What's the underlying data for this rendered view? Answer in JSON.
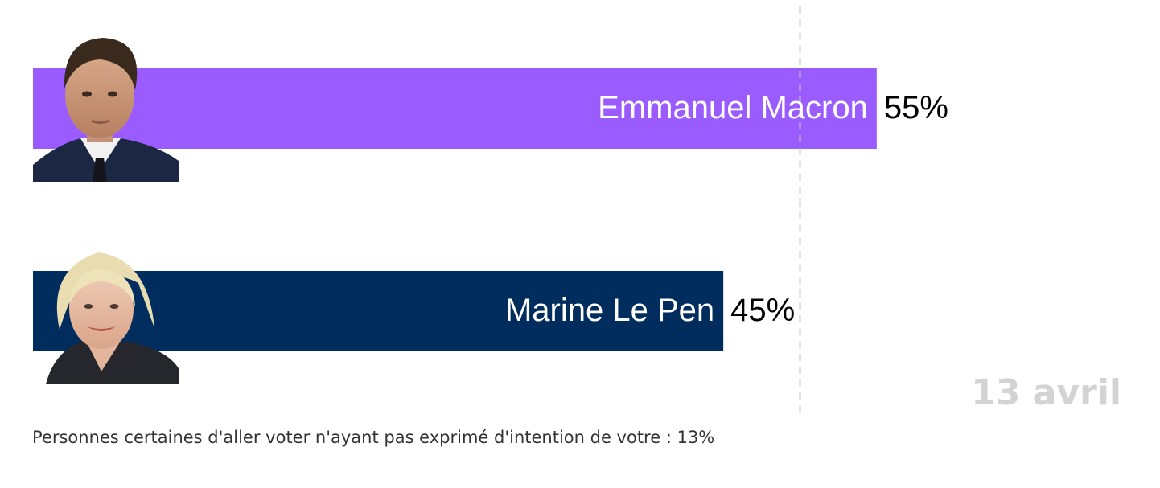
{
  "chart_data": {
    "type": "bar",
    "orientation": "horizontal",
    "categories": [
      "Emmanuel Macron",
      "Marine Le Pen"
    ],
    "values": [
      55,
      45
    ],
    "value_labels": [
      "55%",
      "45%"
    ],
    "colors": [
      "#9b5cff",
      "#002d5e"
    ],
    "xlim": [
      0,
      57
    ],
    "reference_line": 50,
    "date_label": "13 avril",
    "note": "Personnes certaines d'aller voter n'ayant pas exprimé d'intention de votre : 13%"
  }
}
